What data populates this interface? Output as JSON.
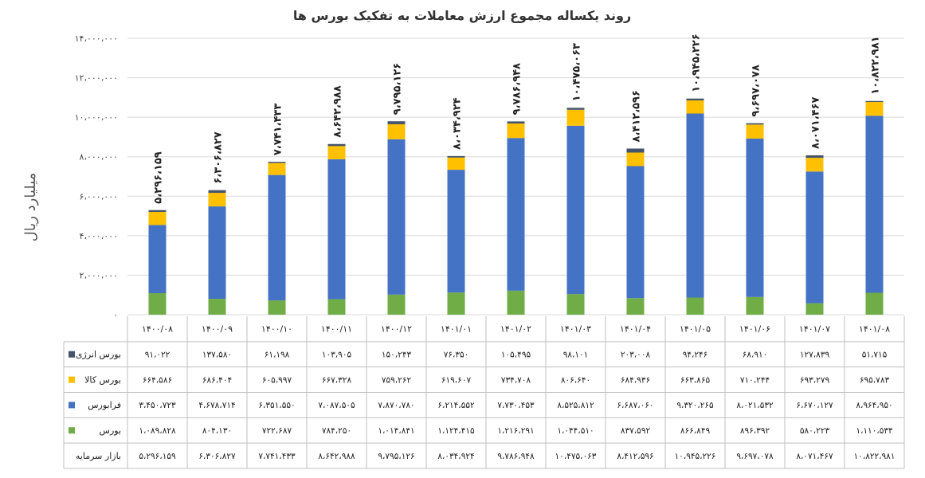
{
  "chart_data": {
    "type": "bar",
    "stacked": true,
    "title": "روند یکساله مجموع ارزش معاملات به تفکیک بورس ها",
    "ylabel": "میلیارد ریال",
    "ylim": [
      0,
      14000000
    ],
    "yticks": [
      "۰",
      "۲،۰۰۰،۰۰۰",
      "۴،۰۰۰،۰۰۰",
      "۶،۰۰۰،۰۰۰",
      "۸،۰۰۰،۰۰۰",
      "۱۰،۰۰۰،۰۰۰",
      "۱۲،۰۰۰،۰۰۰",
      "۱۴،۰۰۰،۰۰۰"
    ],
    "ytick_values": [
      0,
      2000000,
      4000000,
      6000000,
      8000000,
      10000000,
      12000000,
      14000000
    ],
    "grid": true,
    "categories": [
      "۱۴۰۰/۰۸",
      "۱۴۰۰/۰۹",
      "۱۴۰۰/۱۰",
      "۱۴۰۰/۱۱",
      "۱۴۰۰/۱۲",
      "۱۴۰۱/۰۱",
      "۱۴۰۱/۰۲",
      "۱۴۰۱/۰۳",
      "۱۴۰۱/۰۴",
      "۱۴۰۱/۰۵",
      "۱۴۰۱/۰۶",
      "۱۴۰۱/۰۷",
      "۱۴۰۱/۰۸"
    ],
    "series": [
      {
        "name": "بورس انرژی",
        "color": "#44546a",
        "values": [
          91022,
          137580,
          61198,
          103905,
          150243,
          76350,
          105495,
          98101,
          203008,
          94246,
          68910,
          127839,
          51715
        ],
        "labels": [
          "۹۱،۰۲۲",
          "۱۳۷،۵۸۰",
          "۶۱،۱۹۸",
          "۱۰۳،۹۰۵",
          "۱۵۰،۲۴۳",
          "۷۶،۳۵۰",
          "۱۰۵،۴۹۵",
          "۹۸،۱۰۱",
          "۲۰۳،۰۰۸",
          "۹۴،۲۴۶",
          "۶۸،۹۱۰",
          "۱۲۷،۸۳۹",
          "۵۱،۷۱۵"
        ]
      },
      {
        "name": "بورس کالا",
        "color": "#ffc000",
        "values": [
          664586,
          686404,
          605997,
          667328,
          759262,
          619607,
          734708,
          806640,
          684936,
          663865,
          710244,
          693279,
          695783
        ],
        "labels": [
          "۶۶۴،۵۸۶",
          "۶۸۶،۴۰۴",
          "۶۰۵،۹۹۷",
          "۶۶۷،۳۲۸",
          "۷۵۹،۲۶۲",
          "۶۱۹،۶۰۷",
          "۷۳۴،۷۰۸",
          "۸۰۶،۶۴۰",
          "۶۸۴،۹۳۶",
          "۶۶۳،۸۶۵",
          "۷۱۰،۲۴۴",
          "۶۹۳،۲۷۹",
          "۶۹۵،۷۸۳"
        ]
      },
      {
        "name": "فرابورس",
        "color": "#4472c4",
        "values": [
          3450723,
          4678714,
          6351550,
          7087505,
          7870780,
          6214552,
          7730453,
          8525812,
          6687060,
          9320265,
          8021532,
          6670127,
          8964950
        ],
        "labels": [
          "۳،۴۵۰،۷۲۳",
          "۴،۶۷۸،۷۱۴",
          "۶،۳۵۱،۵۵۰",
          "۷،۰۸۷،۵۰۵",
          "۷،۸۷۰،۷۸۰",
          "۶،۲۱۴،۵۵۲",
          "۷،۷۳۰،۴۵۳",
          "۸،۵۲۵،۸۱۲",
          "۶،۶۸۷،۰۶۰",
          "۹،۳۲۰،۲۶۵",
          "۸،۰۲۱،۵۳۲",
          "۶،۶۷۰،۱۲۷",
          "۸،۹۶۴،۹۵۰"
        ]
      },
      {
        "name": "بورس",
        "color": "#70ad47",
        "values": [
          1089828,
          804130,
          722687,
          784250,
          1014841,
          1124415,
          1216291,
          1044510,
          837592,
          866849,
          896392,
          580223,
          1110534
        ],
        "labels": [
          "۱،۰۸۹،۸۲۸",
          "۸۰۴،۱۳۰",
          "۷۲۲،۶۸۷",
          "۷۸۴،۲۵۰",
          "۱،۰۱۴،۸۴۱",
          "۱،۱۲۴،۴۱۵",
          "۱،۲۱۶،۲۹۱",
          "۱،۰۴۴،۵۱۰",
          "۸۳۷،۵۹۲",
          "۸۶۶،۸۴۹",
          "۸۹۶،۳۹۲",
          "۵۸۰،۲۲۳",
          "۱،۱۱۰،۵۳۴"
        ]
      }
    ],
    "totals_name": "بازار سرمایه",
    "totals": [
      5296159,
      6306827,
      7741433,
      8642988,
      9795126,
      8034924,
      9786948,
      10475063,
      8412596,
      10945226,
      9697078,
      8071467,
      10822981
    ],
    "total_labels": [
      "۵،۲۹۶،۱۵۹",
      "۶،۳۰۶،۸۲۷",
      "۷،۷۴۱،۴۳۳",
      "۸،۶۴۲،۹۸۸",
      "۹،۷۹۵،۱۲۶",
      "۸،۰۳۴،۹۲۴",
      "۹،۷۸۶،۹۴۸",
      "۱۰،۴۷۵،۰۶۳",
      "۸،۴۱۲،۵۹۶",
      "۱۰،۹۴۵،۲۲۶",
      "۹،۶۹۷،۰۷۸",
      "۸،۰۷۱،۴۶۷",
      "۱۰،۸۲۲،۹۸۱"
    ]
  }
}
